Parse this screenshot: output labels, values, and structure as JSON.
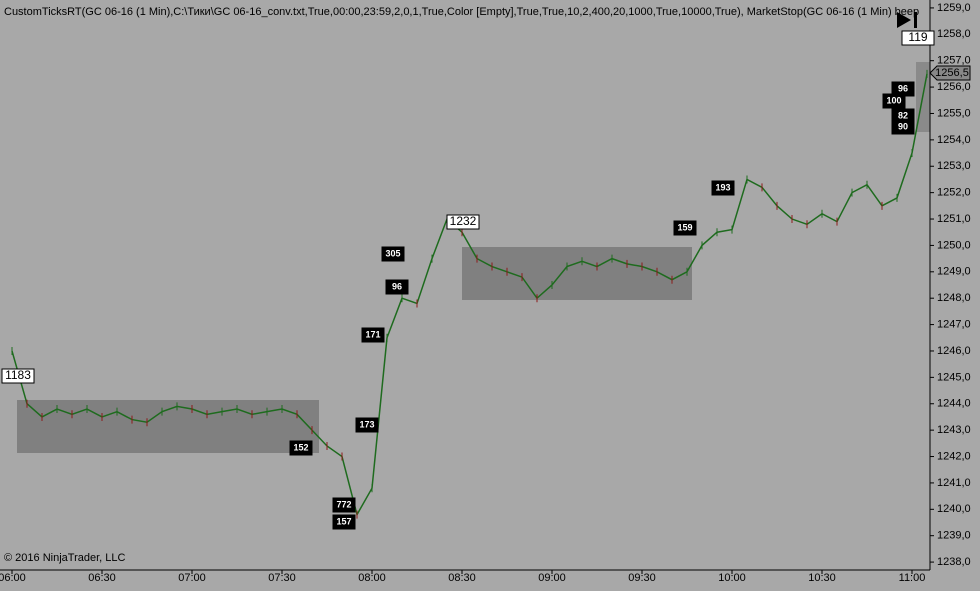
{
  "chart_data": {
    "type": "line",
    "title": "CustomTicksRT(GC 06-16 (1 Min),C:\\Тики\\GC 06-16_conv.txt,True,00:00,23:59,2,0,1,True,Color [Empty],True,True,10,2,400,20,1000,True,10000,True), MarketStop(GC 06-16 (1 Min) beep",
    "copyright": "© 2016 NinjaTrader, LLC",
    "last_price_label": "1256,5",
    "categories": [
      "06:00",
      null,
      null,
      null,
      null,
      null,
      "06:30",
      null,
      null,
      null,
      null,
      null,
      "07:00",
      null,
      null,
      null,
      null,
      null,
      "07:30",
      null,
      null,
      null,
      null,
      null,
      "08:00",
      null,
      null,
      null,
      null,
      null,
      "08:30",
      null,
      null,
      null,
      null,
      null,
      "09:00",
      null,
      null,
      null,
      null,
      null,
      "09:30",
      null,
      null,
      null,
      null,
      null,
      "10:00",
      null,
      null,
      null,
      null,
      null,
      "10:30",
      null,
      null,
      null,
      null,
      null,
      "11:00",
      null
    ],
    "series": [
      {
        "name": "GC 06-16",
        "color": "#1e6b1e",
        "values": [
          1246.0,
          1244.0,
          1243.5,
          1243.8,
          1243.6,
          1243.8,
          1243.5,
          1243.7,
          1243.4,
          1243.3,
          1243.7,
          1243.9,
          1243.8,
          1243.6,
          1243.7,
          1243.8,
          1243.6,
          1243.7,
          1243.8,
          1243.6,
          1243.0,
          1242.4,
          1242.0,
          1239.8,
          1240.8,
          1246.5,
          1248.0,
          1247.8,
          1249.5,
          1251.0,
          1250.5,
          1249.5,
          1249.2,
          1249.0,
          1248.8,
          1248.0,
          1248.5,
          1249.2,
          1249.4,
          1249.2,
          1249.5,
          1249.3,
          1249.2,
          1249.0,
          1248.7,
          1249.0,
          1250.0,
          1250.5,
          1250.6,
          1252.5,
          1252.2,
          1251.5,
          1251.0,
          1250.8,
          1251.2,
          1250.9,
          1252.0,
          1252.3,
          1251.5,
          1251.8,
          1253.5,
          1256.5
        ]
      }
    ],
    "ylim": [
      1237.7,
      1259.3
    ],
    "yticks": [
      {
        "value": 1238,
        "label": "1238,0"
      },
      {
        "value": 1239,
        "label": "1239,0"
      },
      {
        "value": 1240,
        "label": "1240,0"
      },
      {
        "value": 1241,
        "label": "1241,0"
      },
      {
        "value": 1242,
        "label": "1242,0"
      },
      {
        "value": 1243,
        "label": "1243,0"
      },
      {
        "value": 1244,
        "label": "1244,0"
      },
      {
        "value": 1245,
        "label": "1245,0"
      },
      {
        "value": 1246,
        "label": "1246,0"
      },
      {
        "value": 1247,
        "label": "1247,0"
      },
      {
        "value": 1248,
        "label": "1248,0"
      },
      {
        "value": 1249,
        "label": "1249,0"
      },
      {
        "value": 1250,
        "label": "1250,0"
      },
      {
        "value": 1251,
        "label": "1251,0"
      },
      {
        "value": 1252,
        "label": "1252,0"
      },
      {
        "value": 1253,
        "label": "1253,0"
      },
      {
        "value": 1254,
        "label": "1254,0"
      },
      {
        "value": 1255,
        "label": "1255,0"
      },
      {
        "value": 1256,
        "label": "1256,0"
      },
      {
        "value": 1257,
        "label": "1257,0"
      },
      {
        "value": 1258,
        "label": "1258,0"
      },
      {
        "value": 1259,
        "label": "1259,0"
      }
    ],
    "annotations": [
      "1183",
      "1232",
      "119",
      "152",
      "173",
      "171",
      "305",
      "96",
      "772",
      "157",
      "159",
      "193",
      "100",
      "82",
      "90",
      "96"
    ]
  }
}
